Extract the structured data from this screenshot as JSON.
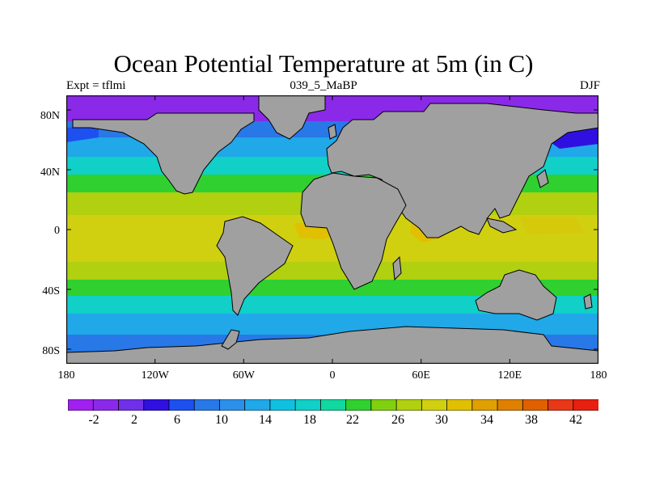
{
  "title": "Ocean Potential Temperature at 5m (in C)",
  "subtitle_left": "Expt = tflmi",
  "subtitle_center": "039_5_MaBP",
  "subtitle_right": "DJF",
  "lat_labels": [
    "80N",
    "40N",
    "0",
    "40S",
    "80S"
  ],
  "lon_labels": [
    "180",
    "120W",
    "60W",
    "0",
    "60E",
    "120E",
    "180"
  ],
  "colorbar": {
    "colors": [
      "#a020f0",
      "#8a2ae8",
      "#7030e8",
      "#3010e0",
      "#1e50f0",
      "#2878e8",
      "#2c90e8",
      "#20a8e8",
      "#10c0e0",
      "#10d0c8",
      "#10d8a0",
      "#30d030",
      "#80d010",
      "#b0d010",
      "#d0d010",
      "#e0c000",
      "#e0a000",
      "#e08000",
      "#e06000",
      "#e83818",
      "#e82010"
    ],
    "tick_labels": [
      "-2",
      "2",
      "6",
      "10",
      "14",
      "18",
      "22",
      "26",
      "30",
      "34",
      "38",
      "42"
    ]
  },
  "legend_levels": {
    "-2": "#8a2ae8",
    "2": "#7030e8",
    "6": "#3010e0",
    "10": "#1e50f0",
    "14": "#2878e8",
    "18": "#20a8e8",
    "22": "#10d0c8",
    "26": "#30d030",
    "30": "#b0d010",
    "34": "#e0c000"
  },
  "colors": {
    "land": "#a0a0a0",
    "coast": "#000000"
  }
}
